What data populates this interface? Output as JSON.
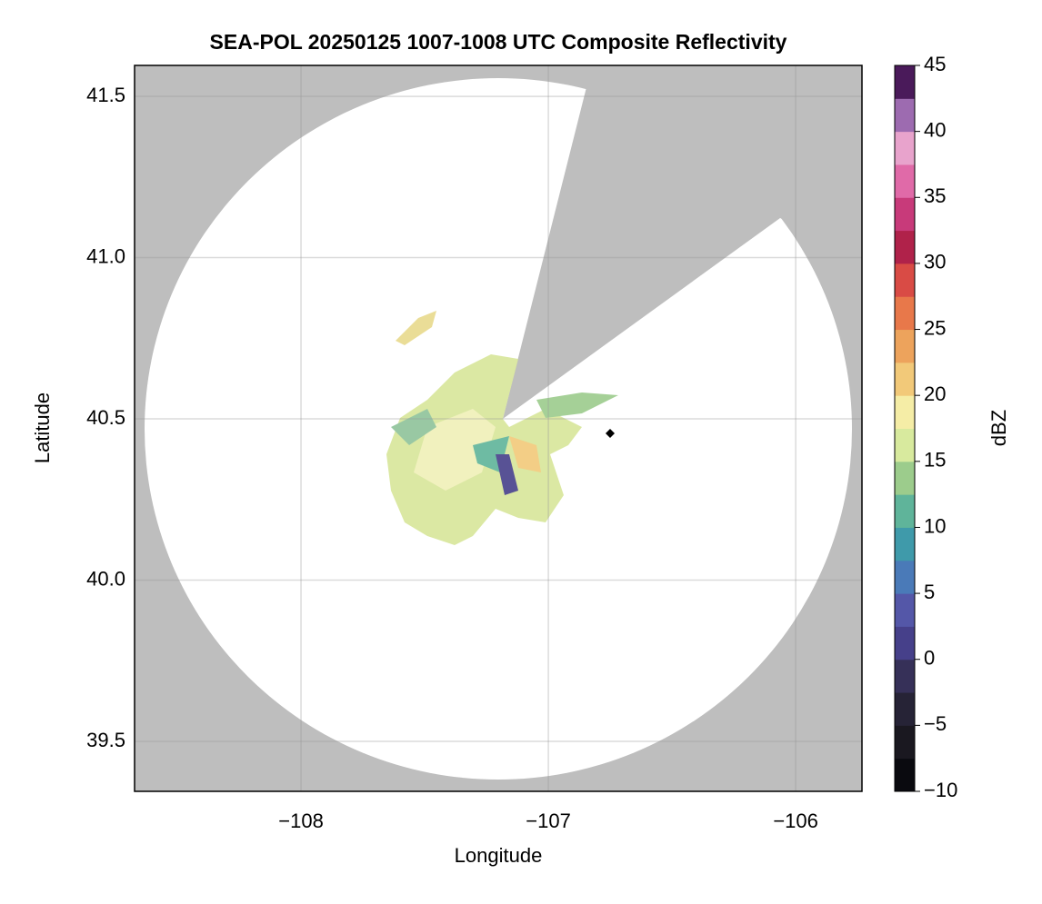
{
  "chart_data": {
    "type": "radar",
    "title": "SEA-POL 20250125 1007-1008 UTC Composite Reflectivity",
    "xlabel": "Longitude",
    "ylabel": "Latitude",
    "xlim": [
      -108.673,
      -105.732
    ],
    "ylim": [
      39.345,
      41.596
    ],
    "xticks": [
      {
        "value": -108,
        "label": "−108"
      },
      {
        "value": -107,
        "label": "−107"
      },
      {
        "value": -106,
        "label": "−106"
      }
    ],
    "yticks": [
      39.5,
      {
        "value": 40,
        "label": "40.0"
      },
      40.5,
      {
        "value": 41,
        "label": "41.0"
      },
      41.5
    ],
    "grid": true,
    "colorbar": {
      "label": "dBZ",
      "lim": [
        -10,
        45
      ],
      "ticks": [
        {
          "value": -10,
          "label": "−10"
        },
        {
          "value": -5,
          "label": "−5"
        },
        0,
        5,
        10,
        15,
        20,
        25,
        30,
        35,
        40,
        45
      ],
      "colors": [
        "#0a0a0f",
        "#1a1820",
        "#262336",
        "#363058",
        "#46408a",
        "#5457a8",
        "#4a7ab8",
        "#3f9aaa",
        "#5fb49a",
        "#9ccc8c",
        "#d8ea9e",
        "#f5eda6",
        "#f2c979",
        "#eda35c",
        "#e8784a",
        "#d94b45",
        "#b0224a",
        "#c83a7a",
        "#e06aa8",
        "#e8a3cc",
        "#9d6bb0",
        "#4a1a5a"
      ]
    }
  }
}
